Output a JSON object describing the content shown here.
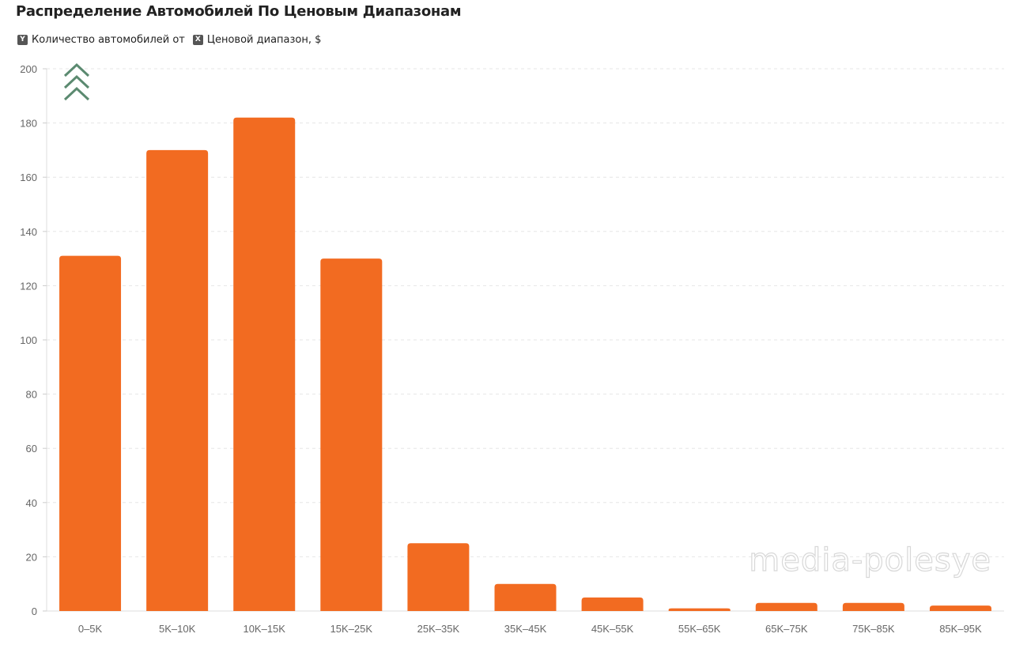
{
  "chart_data": {
    "type": "bar",
    "title": "Распределение Автомобилей По Ценовым Диапазонам",
    "legend": [
      {
        "badge": "Y",
        "label": "Количество автомобилей от"
      },
      {
        "badge": "X",
        "label": "Ценовой диапазон, $"
      }
    ],
    "xlabel": "Ценовой диапазон, $",
    "ylabel": "Количество автомобилей от",
    "categories": [
      "0–5K",
      "5K–10K",
      "10K–15K",
      "15K–25K",
      "25K–35K",
      "35K–45K",
      "45K–55K",
      "55K–65K",
      "65K–75K",
      "75K–85K",
      "85K–95K"
    ],
    "values": [
      131,
      170,
      182,
      130,
      25,
      10,
      5,
      1,
      3,
      3,
      2
    ],
    "ylim": [
      0,
      200
    ],
    "yticks": [
      0,
      20,
      40,
      60,
      80,
      100,
      120,
      140,
      160,
      180,
      200
    ],
    "grid": true,
    "bar_color": "#f26b21"
  },
  "watermark": "media-polesye"
}
